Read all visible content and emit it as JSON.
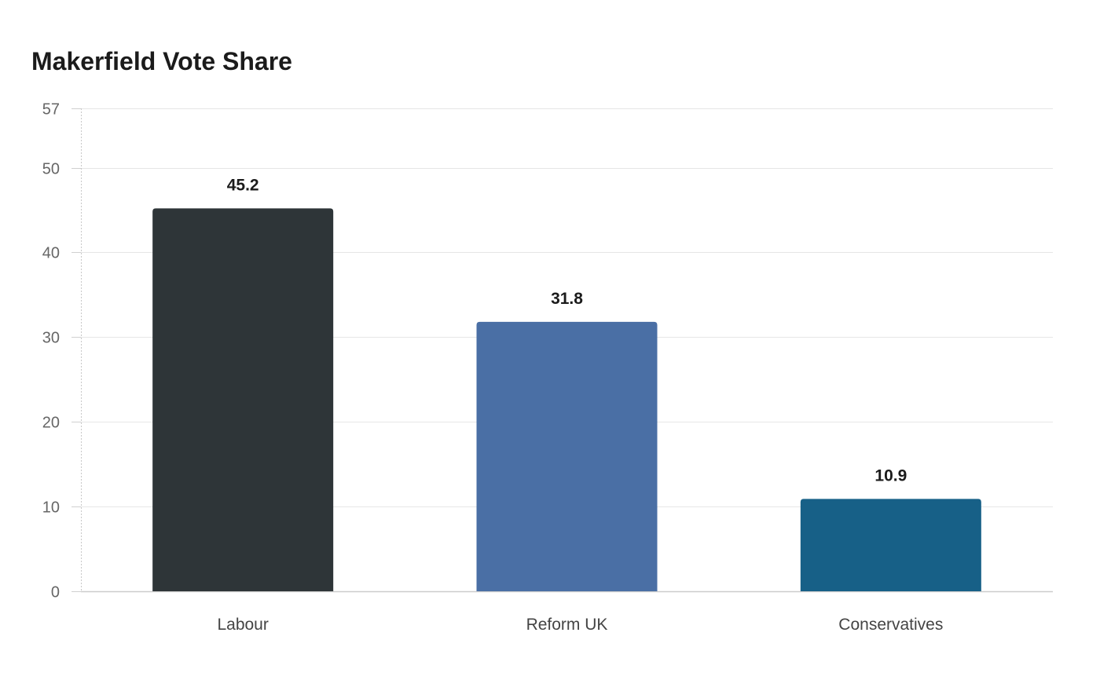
{
  "chart_data": {
    "type": "bar",
    "title": "Makerfield Vote Share",
    "xlabel": "",
    "ylabel": "",
    "categories": [
      "Labour",
      "Reform UK",
      "Conservatives"
    ],
    "values": [
      45.2,
      31.8,
      10.9
    ],
    "colors": [
      "#2e3538",
      "#4a6fa5",
      "#176087"
    ],
    "ylim": [
      0,
      57
    ],
    "yticks": [
      0,
      10,
      20,
      30,
      40,
      50,
      57
    ],
    "grid": true,
    "legend": "none"
  }
}
